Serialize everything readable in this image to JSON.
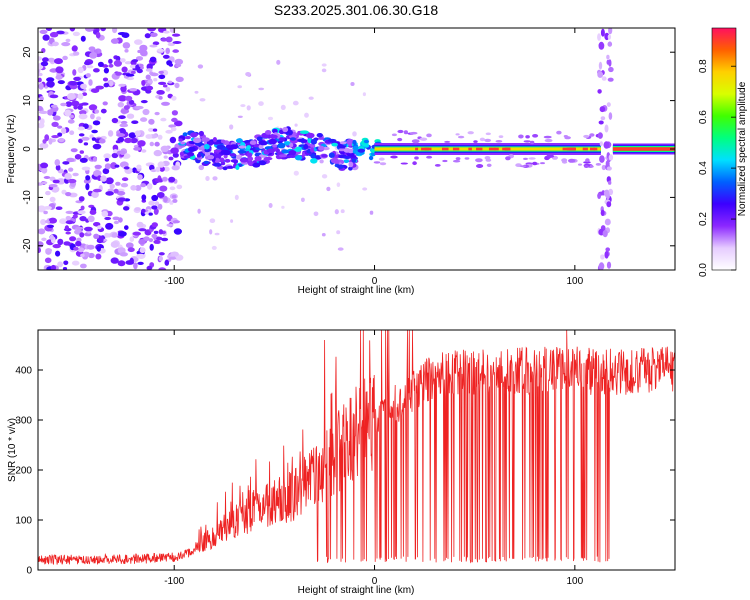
{
  "chart_data": [
    {
      "type": "heatmap",
      "title": "S233.2025.301.06.30.G18",
      "xlabel": "Height of straight line (km)",
      "ylabel": "Frequency (Hz)",
      "xlim": [
        -168,
        150
      ],
      "ylim": [
        -25,
        25
      ],
      "x_ticks": [
        -100,
        0,
        100
      ],
      "y_ticks": [
        20,
        10,
        0,
        -10,
        -20
      ],
      "x_tick_labels": [
        "-100",
        "0",
        "100"
      ],
      "y_tick_labels": [
        "20",
        "10",
        "0",
        "-10",
        "-20"
      ],
      "colorbar": {
        "label": "Normalized spectral amplitude",
        "range": [
          0,
          0.95
        ],
        "ticks": [
          0.0,
          0.2,
          0.4,
          0.6,
          0.8
        ],
        "tick_labels": [
          "0.0",
          "0.2",
          "0.4",
          "0.6",
          "0.8"
        ],
        "colors": [
          "#ffffff",
          "#e6ccff",
          "#8c28ff",
          "#3c00ff",
          "#0060ff",
          "#00e0ff",
          "#00ff80",
          "#40ff00",
          "#d8ff00",
          "#ffd000",
          "#ff6000",
          "#ff1060"
        ]
      },
      "features": [
        {
          "name": "broadband noise",
          "x_range": [
            -168,
            -97
          ],
          "freq_range": [
            -25,
            25
          ],
          "amplitude": 0.1
        },
        {
          "name": "onset band",
          "x_range": [
            -97,
            -8
          ],
          "freq_center": 0,
          "freq_halfwidth": 3,
          "amplitude": 0.3
        },
        {
          "name": "stable tone",
          "x_range": [
            0,
            113
          ],
          "freq_center": 0,
          "amplitude": 0.8
        },
        {
          "name": "gap spike",
          "x_range": [
            112,
            118
          ],
          "freq_range": [
            -25,
            25
          ],
          "amplitude": 0.05
        },
        {
          "name": "final tone",
          "x_range": [
            119,
            150
          ],
          "freq_center": 0,
          "amplitude": 0.9
        }
      ]
    },
    {
      "type": "line",
      "title": "",
      "xlabel": "Height of straight line (km)",
      "ylabel": "SNR (10 * v/v)",
      "xlim": [
        -168,
        150
      ],
      "ylim": [
        0,
        480
      ],
      "x_ticks": [
        -100,
        0,
        100
      ],
      "y_ticks": [
        0,
        100,
        200,
        300,
        400
      ],
      "x_tick_labels": [
        "-100",
        "0",
        "100"
      ],
      "y_tick_labels": [
        "0",
        "100",
        "200",
        "300",
        "400"
      ],
      "color": "#ee2222",
      "series": [
        {
          "name": "SNR",
          "anchors_x": [
            -168,
            -120,
            -100,
            -90,
            -85,
            -70,
            -60,
            -40,
            -30,
            -20,
            -10,
            0,
            10,
            20,
            30,
            40,
            60,
            80,
            100,
            120,
            150
          ],
          "anchors_y": [
            20,
            22,
            25,
            35,
            55,
            95,
            120,
            150,
            185,
            230,
            270,
            300,
            330,
            360,
            390,
            395,
            400,
            400,
            400,
            395,
            400
          ],
          "dropouts_x_range": [
            -30,
            118
          ],
          "dropout_value": 15,
          "peaks": [
            {
              "x": -25,
              "y": 460
            },
            {
              "x": 96,
              "y": 480
            }
          ]
        }
      ]
    }
  ]
}
